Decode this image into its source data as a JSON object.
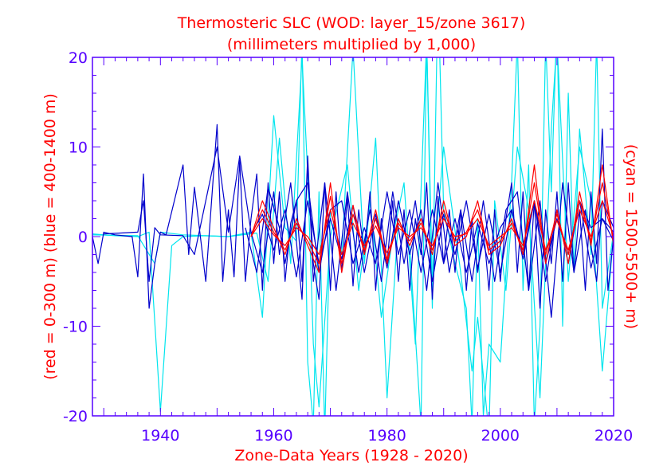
{
  "chart_data": {
    "type": "line",
    "title": "Thermosteric SLC (WOD: layer_15/zone 3617)",
    "subtitle": "(millimeters multiplied by 1,000)",
    "xlabel": "Zone-Data Years (1928 - 2020)",
    "ylabel_left": "(red = 0-300 m)  (blue = 400-1400 m)",
    "ylabel_right": "(cyan = 1500-5500+ m)",
    "xlim": [
      1928,
      2020
    ],
    "ylim": [
      -20,
      20
    ],
    "x_ticks": [
      1940,
      1960,
      1980,
      2000,
      2020
    ],
    "y_ticks": [
      -20,
      -10,
      0,
      10,
      20
    ],
    "grid": false,
    "colors": {
      "title": "#ff0000",
      "axis": "#5500ff",
      "red": "#ff0000",
      "blue": "#0000cc",
      "cyan": "#00e5ee"
    },
    "series": [
      {
        "color": "cyan",
        "x": [
          1928,
          1932,
          1936,
          1938,
          1940,
          1942,
          1944,
          1948,
          1952,
          1956,
          1958,
          1960,
          1962,
          1964,
          1965,
          1966,
          1967,
          1968,
          1969,
          1970,
          1972,
          1974,
          1976,
          1978,
          1980,
          1982,
          1984,
          1986,
          1987,
          1988,
          1989,
          1990,
          1992,
          1994,
          1995,
          1996,
          1997,
          1998,
          2000,
          2002,
          2003,
          2004,
          2005,
          2006,
          2007,
          2008,
          2009,
          2010,
          2011,
          2012,
          2013,
          2014,
          2016,
          2017,
          2018,
          2020
        ],
        "values": [
          0.3,
          0.1,
          0,
          0.5,
          -19.5,
          -1.0,
          0,
          0.1,
          0,
          0.5,
          -9.0,
          13.5,
          1.0,
          -0.5,
          22.0,
          -14.0,
          -21.0,
          5.0,
          -22.0,
          3.0,
          -2.0,
          21.0,
          -3.0,
          11.0,
          -18.0,
          2.0,
          -1.0,
          -21.0,
          22.0,
          -8.0,
          28.0,
          3.0,
          -3.0,
          -8.0,
          -21.0,
          2.0,
          -20.0,
          -12.0,
          -14.0,
          6.0,
          22.0,
          -6.0,
          8.0,
          -21.0,
          -10.0,
          22.0,
          5.0,
          24.0,
          -10.0,
          16.0,
          -4.0,
          12.0,
          -2.0,
          22.0,
          -8.0,
          0.5
        ]
      },
      {
        "color": "cyan",
        "x": [
          1928,
          1936,
          1939,
          1940,
          1944,
          1952,
          1957,
          1959,
          1961,
          1963,
          1965,
          1966,
          1967,
          1968,
          1970,
          1973,
          1975,
          1977,
          1979,
          1981,
          1983,
          1985,
          1987,
          1988,
          1990,
          1993,
          1995,
          1996,
          1998,
          1999,
          2001,
          2003,
          2005,
          2007,
          2009,
          2010,
          2012,
          2014,
          2016,
          2018,
          2020
        ],
        "values": [
          0.2,
          0.1,
          -3.0,
          0.5,
          0.2,
          0,
          0.4,
          -5.0,
          11.0,
          -3.0,
          20.0,
          7.0,
          -12.0,
          -19.0,
          0,
          8.0,
          -6.0,
          4.0,
          -9.0,
          0,
          6.0,
          -12.0,
          22.0,
          -5.0,
          10.0,
          -4.0,
          -15.0,
          -9.0,
          -22.0,
          4.0,
          -6.0,
          10.0,
          3.0,
          -18.0,
          12.0,
          22.0,
          -5.0,
          10.0,
          4.0,
          -15.0,
          0.3
        ]
      },
      {
        "color": "blue",
        "x": [
          1928,
          1929,
          1930,
          1932,
          1935,
          1936,
          1937,
          1938,
          1939,
          1940,
          1941,
          1944,
          1945,
          1946,
          1948,
          1950,
          1951,
          1952,
          1953,
          1954,
          1955,
          1956,
          1957,
          1958,
          1959,
          1960,
          1961,
          1962,
          1963,
          1964,
          1965,
          1966,
          1967,
          1968,
          1969,
          1970,
          1971,
          1972,
          1973,
          1974,
          1975,
          1976,
          1977,
          1978,
          1979,
          1980,
          1981,
          1982,
          1983,
          1984,
          1985,
          1986,
          1987,
          1988,
          1989,
          1990,
          1991,
          1992,
          1993,
          1994,
          1995,
          1996,
          1997,
          1998,
          1999,
          2000,
          2001,
          2002,
          2003,
          2004,
          2005,
          2006,
          2007,
          2008,
          2009,
          2010,
          2011,
          2012,
          2013,
          2014,
          2015,
          2016,
          2017,
          2018,
          2019,
          2020
        ],
        "values": [
          0,
          -3.0,
          0.5,
          0.2,
          0,
          -4.5,
          7.0,
          -8.0,
          -3.0,
          0.5,
          0.2,
          8.0,
          -2.0,
          5.5,
          -5.0,
          12.5,
          -5.0,
          3.0,
          -4.5,
          8.5,
          -5.0,
          2.0,
          7.0,
          -6.0,
          6.0,
          -3.0,
          5.0,
          -5.0,
          1.5,
          4.0,
          -5.0,
          8.0,
          -3.0,
          -7.0,
          6.0,
          -6.0,
          5.0,
          -4.0,
          4.5,
          -5.5,
          3.0,
          -2.0,
          5.0,
          -6.0,
          2.0,
          -3.0,
          4.0,
          -5.0,
          3.0,
          -6.0,
          2.0,
          -2.0,
          6.0,
          -7.0,
          4.5,
          -3.0,
          3.0,
          -4.0,
          3.0,
          -6.0,
          2.0,
          -4.0,
          1.0,
          -6.0,
          3.0,
          -5.0,
          2.0,
          6.0,
          -4.0,
          5.0,
          -6.0,
          4.0,
          -8.0,
          3.0,
          -3.0,
          5.0,
          -5.0,
          6.0,
          -4.0,
          3.0,
          -6.0,
          5.0,
          -3.0,
          12.0,
          -6.0,
          0
        ]
      },
      {
        "color": "blue",
        "x": [
          1930,
          1936,
          1937,
          1938,
          1939,
          1940,
          1944,
          1946,
          1948,
          1950,
          1952,
          1954,
          1956,
          1958,
          1960,
          1961,
          1963,
          1965,
          1966,
          1967,
          1969,
          1971,
          1973,
          1975,
          1977,
          1979,
          1981,
          1983,
          1985,
          1987,
          1989,
          1991,
          1993,
          1995,
          1997,
          1999,
          2001,
          2003,
          2005,
          2007,
          2009,
          2011,
          2013,
          2015,
          2017,
          2018,
          2020
        ],
        "values": [
          0.3,
          0.5,
          4.0,
          -5.0,
          1.0,
          0.2,
          0.1,
          -2.0,
          4.0,
          10.0,
          0.5,
          9.0,
          0.5,
          -4.0,
          5.0,
          -2.0,
          6.0,
          -7.0,
          9.0,
          -5.0,
          6.0,
          -6.0,
          5.0,
          -4.0,
          3.0,
          -5.0,
          5.0,
          -3.0,
          4.0,
          -6.0,
          6.0,
          -4.0,
          3.0,
          -5.0,
          4.0,
          -5.0,
          3.0,
          5.0,
          -6.0,
          4.0,
          -9.0,
          6.0,
          -4.0,
          3.0,
          -5.0,
          4.0,
          1.0
        ]
      },
      {
        "color": "blue",
        "x": [
          1955,
          1957,
          1959,
          1961,
          1962,
          1964,
          1966,
          1968,
          1970,
          1972,
          1974,
          1976,
          1978,
          1980,
          1982,
          1984,
          1986,
          1988,
          1990,
          1992,
          1994,
          1996,
          1998,
          2000,
          2002,
          2004,
          2006,
          2008,
          2010,
          2012,
          2014,
          2016,
          2018,
          2020
        ],
        "values": [
          1.0,
          -4.0,
          5.5,
          1.0,
          -3.0,
          4.0,
          6.0,
          -4.0,
          3.0,
          4.0,
          -3.0,
          1.0,
          -3.0,
          5.0,
          -2.0,
          3.0,
          -4.0,
          3.0,
          -3.0,
          2.0,
          -4.0,
          1.5,
          -3.0,
          1.0,
          3.0,
          -2.0,
          4.0,
          -3.0,
          2.0,
          -2.0,
          4.0,
          1.0,
          2.0,
          -0.5
        ]
      },
      {
        "color": "blue",
        "x": [
          1956,
          1958,
          1960,
          1962,
          1964,
          1966,
          1968,
          1970,
          1972,
          1974,
          1976,
          1978,
          1980,
          1982,
          1984,
          1986,
          1988,
          1990,
          1992,
          1994,
          1996,
          1998,
          2000,
          2002,
          2004,
          2006,
          2008,
          2010,
          2012,
          2014,
          2016,
          2018,
          2020
        ],
        "values": [
          0.3,
          2.5,
          -1.5,
          3.0,
          -4.5,
          4.0,
          -3.0,
          2.0,
          -2.5,
          3.5,
          -4.0,
          2.5,
          -3.5,
          4.0,
          -2.0,
          3.0,
          -5.0,
          2.5,
          -2.0,
          4.0,
          -3.5,
          2.5,
          -4.0,
          3.0,
          -2.5,
          4.0,
          -5.0,
          3.0,
          -3.0,
          4.0,
          -3.5,
          2.0,
          0.5
        ]
      },
      {
        "color": "red",
        "x": [
          1956,
          1958,
          1960,
          1962,
          1964,
          1966,
          1968,
          1970,
          1972,
          1974,
          1976,
          1978,
          1980,
          1982,
          1984,
          1986,
          1988,
          1990,
          1992,
          1994,
          1996,
          1998,
          2000,
          2002,
          2004,
          2006,
          2008,
          2010,
          2012,
          2014,
          2016,
          2018,
          2020
        ],
        "values": [
          0,
          4.0,
          1.0,
          -2.0,
          2.0,
          -1.0,
          -4.0,
          6.0,
          -4.0,
          3.5,
          -2.0,
          3.0,
          -3.0,
          2.0,
          -1.0,
          2.0,
          -2.0,
          4.0,
          -1.0,
          0,
          4.0,
          -2.0,
          -1.0,
          2.0,
          -2.0,
          8.0,
          -3.0,
          3.0,
          -3.0,
          5.0,
          -1.0,
          8.0,
          -1.0
        ]
      },
      {
        "color": "red",
        "x": [
          1956,
          1958,
          1960,
          1962,
          1964,
          1966,
          1968,
          1970,
          1972,
          1974,
          1976,
          1978,
          1980,
          1982,
          1984,
          1986,
          1988,
          1990,
          1992,
          1994,
          1996,
          1998,
          2000,
          2002,
          2004,
          2006,
          2008,
          2010,
          2012,
          2014,
          2016,
          2018,
          2020
        ],
        "values": [
          0,
          3.0,
          0.5,
          -1.5,
          1.5,
          -0.5,
          -3.0,
          4.5,
          -3.0,
          2.5,
          -1.5,
          2.0,
          -2.5,
          1.5,
          -0.5,
          1.5,
          -1.5,
          3.0,
          -0.5,
          0.5,
          3.0,
          -1.5,
          -0.5,
          1.5,
          -1.5,
          6.0,
          -2.0,
          2.5,
          -2.0,
          4.0,
          -0.5,
          6.0,
          -0.5
        ]
      },
      {
        "color": "red",
        "x": [
          1956,
          1958,
          1960,
          1962,
          1964,
          1966,
          1968,
          1970,
          1972,
          1974,
          1976,
          1978,
          1980,
          1982,
          1984,
          1986,
          1988,
          1990,
          1992,
          1994,
          1996,
          1998,
          2000,
          2002,
          2004,
          2006,
          2008,
          2010,
          2012,
          2014,
          2016,
          2018,
          2020
        ],
        "values": [
          0,
          2.0,
          0.2,
          -1.0,
          1.0,
          0,
          -2.0,
          3.0,
          -2.0,
          1.5,
          -1.0,
          1.2,
          -1.8,
          1.0,
          0,
          1.0,
          -1.0,
          2.0,
          0,
          0.3,
          2.0,
          -1.0,
          0,
          1.0,
          -1.0,
          4.0,
          -1.5,
          1.8,
          -1.5,
          3.0,
          0,
          4.0,
          0
        ]
      }
    ]
  }
}
